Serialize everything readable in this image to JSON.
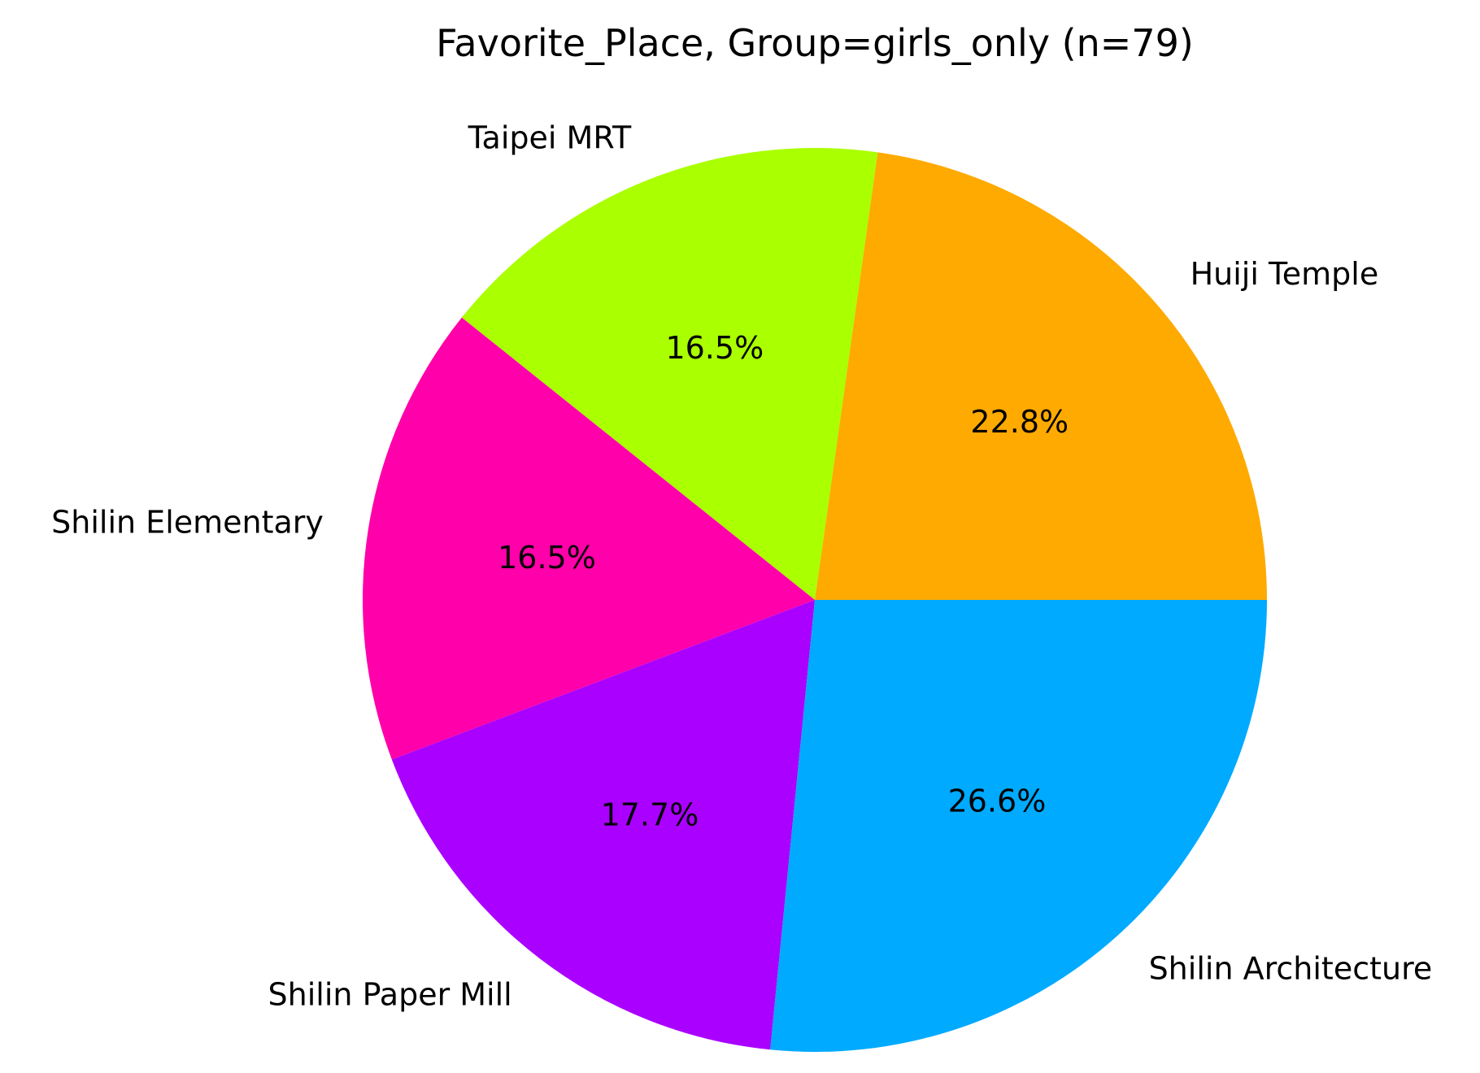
{
  "chart_data": {
    "type": "pie",
    "title": "Favorite_Place, Group=girls_only (n=79)",
    "slices": [
      {
        "label": "Huiji Temple",
        "value": 22.8,
        "pct_label": "22.8%",
        "color": "#FFAA00"
      },
      {
        "label": "Taipei MRT",
        "value": 16.5,
        "pct_label": "16.5%",
        "color": "#AAFF00"
      },
      {
        "label": "Shilin Elementary",
        "value": 16.5,
        "pct_label": "16.5%",
        "color": "#FF00AA"
      },
      {
        "label": "Shilin Paper Mill",
        "value": 17.7,
        "pct_label": "17.7%",
        "color": "#AA00FF"
      },
      {
        "label": "Shilin Architecture",
        "value": 26.6,
        "pct_label": "26.6%",
        "color": "#00AAFF"
      }
    ],
    "start_angle_deg": 0,
    "direction": "counterclockwise",
    "legend": "none"
  }
}
